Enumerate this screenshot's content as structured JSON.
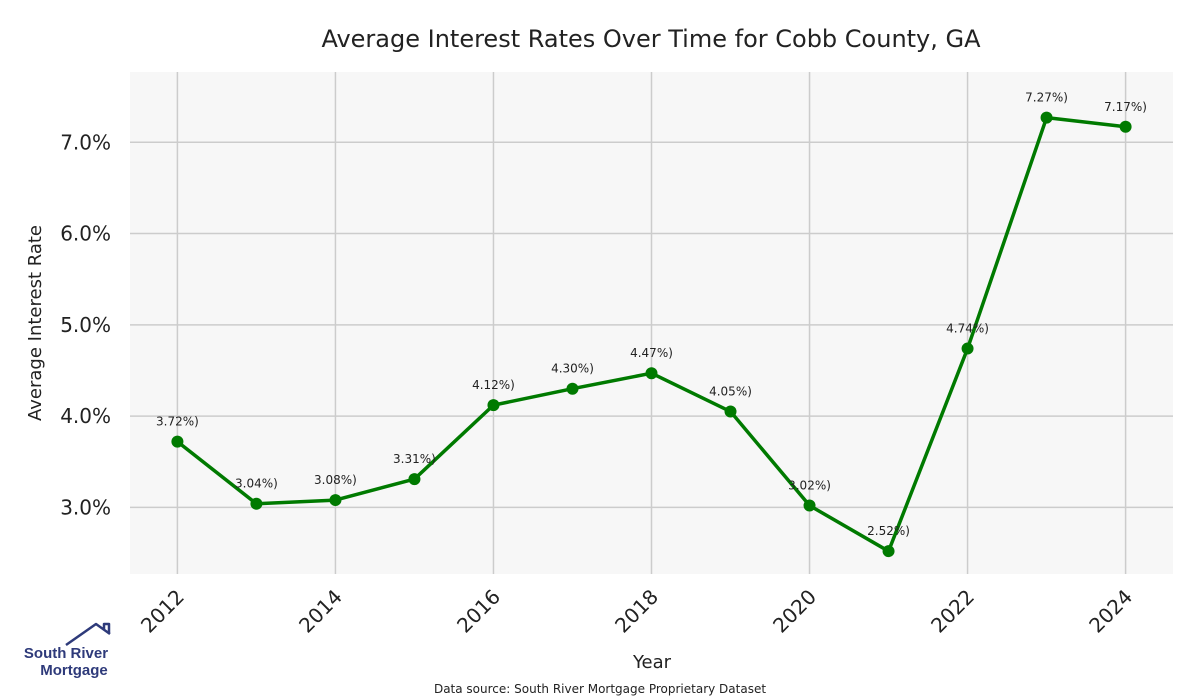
{
  "chart_data": {
    "type": "line",
    "title": "Average Interest Rates Over Time for Cobb County, GA",
    "xlabel": "Year",
    "ylabel": "Average Interest Rate",
    "x": [
      2012,
      2013,
      2014,
      2015,
      2016,
      2017,
      2018,
      2019,
      2020,
      2021,
      2022,
      2023,
      2024
    ],
    "series": [
      {
        "values": [
          3.72,
          3.04,
          3.08,
          3.31,
          4.12,
          4.3,
          4.47,
          4.05,
          3.02,
          2.52,
          4.74,
          7.27,
          7.17
        ],
        "data_labels": [
          "3.72%)",
          "3.04%)",
          "3.08%)",
          "3.31%)",
          "4.12%)",
          "4.30%)",
          "4.47%)",
          "4.05%)",
          "3.02%)",
          "2.52%)",
          "4.74%)",
          "7.27%)",
          "7.17%)"
        ],
        "color": "#007a00"
      }
    ],
    "xticks": [
      "2012",
      "2014",
      "2016",
      "2018",
      "2020",
      "2022",
      "2024"
    ],
    "xtick_values": [
      2012,
      2014,
      2016,
      2018,
      2020,
      2022,
      2024
    ],
    "yticks": [
      "3.0%",
      "4.0%",
      "5.0%",
      "6.0%",
      "7.0%"
    ],
    "ytick_values": [
      3.0,
      4.0,
      5.0,
      6.0,
      7.0
    ],
    "xlim": [
      2011.4,
      2024.6
    ],
    "ylim": [
      2.27,
      7.77
    ],
    "grid": true,
    "background": "#f7f7f7",
    "grid_color": "#cccccc"
  },
  "source_note": "Data source: South River Mortgage Proprietary Dataset",
  "logo": {
    "line1": "South River",
    "line2": "Mortgage",
    "icon": "house-roof-icon",
    "color": "#2e3a7a"
  }
}
